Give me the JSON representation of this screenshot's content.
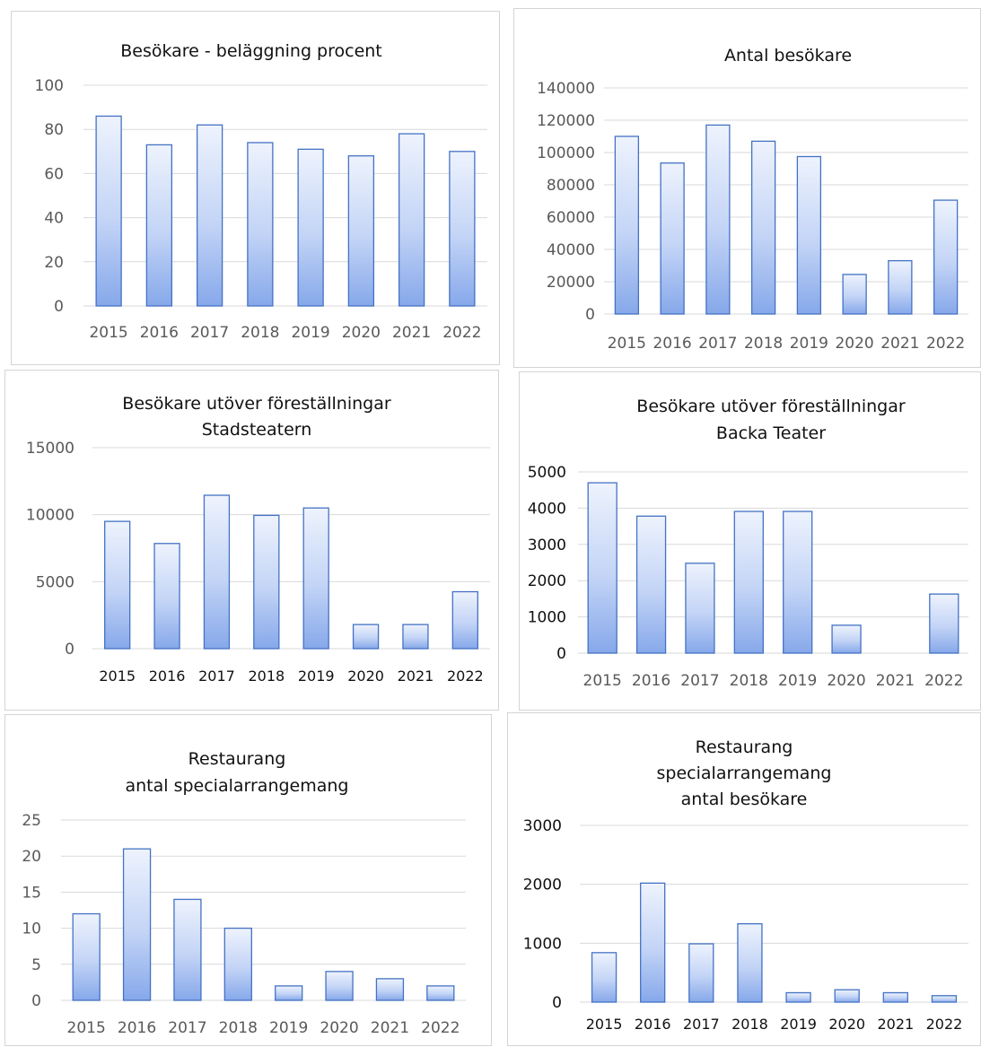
{
  "chart_data": [
    {
      "type": "bar",
      "title": [
        "Besökare - beläggning procent"
      ],
      "categories": [
        "2015",
        "2016",
        "2017",
        "2018",
        "2019",
        "2020",
        "2021",
        "2022"
      ],
      "values": [
        86,
        73,
        82,
        74,
        71,
        68,
        78,
        70
      ],
      "ylim": [
        0,
        100
      ],
      "yticks": [
        "0",
        "20",
        "40",
        "60",
        "80",
        "100"
      ],
      "grid": true,
      "bar_color": "#4472c4"
    },
    {
      "type": "bar",
      "title": [
        "Antal besökare"
      ],
      "categories": [
        "2015",
        "2016",
        "2017",
        "2018",
        "2019",
        "2020",
        "2021",
        "2022"
      ],
      "values": [
        110000,
        93500,
        117000,
        107000,
        97500,
        24500,
        33000,
        70500
      ],
      "ylim": [
        0,
        140000
      ],
      "yticks": [
        "0",
        "20000",
        "40000",
        "60000",
        "80000",
        "100000",
        "120000",
        "140000"
      ],
      "grid": true,
      "bar_color": "#4472c4"
    },
    {
      "type": "bar",
      "title": [
        "Besökare utöver föreställningar",
        "Stadsteatern"
      ],
      "categories": [
        "2015",
        "2016",
        "2017",
        "2018",
        "2019",
        "2020",
        "2021",
        "2022"
      ],
      "values": [
        9500,
        7850,
        11450,
        9950,
        10500,
        1800,
        1800,
        4250
      ],
      "ylim": [
        0,
        15000
      ],
      "yticks": [
        "0",
        "5000",
        "10000",
        "15000"
      ],
      "grid": true,
      "bar_color": "#4472c4"
    },
    {
      "type": "bar",
      "title": [
        "Besökare utöver föreställningar",
        "Backa Teater"
      ],
      "categories": [
        "2015",
        "2016",
        "2017",
        "2018",
        "2019",
        "2020",
        "2021",
        "2022"
      ],
      "values": [
        4700,
        3780,
        2480,
        3910,
        3910,
        770,
        0,
        1630
      ],
      "ylim": [
        0,
        5000
      ],
      "yticks": [
        "0",
        "1000",
        "2000",
        "3000",
        "4000",
        "5000"
      ],
      "grid": true,
      "bar_color": "#4472c4"
    },
    {
      "type": "bar",
      "title": [
        "Restaurang",
        "antal specialarrangemang"
      ],
      "categories": [
        "2015",
        "2016",
        "2017",
        "2018",
        "2019",
        "2020",
        "2021",
        "2022"
      ],
      "values": [
        12,
        21,
        14,
        10,
        2,
        4,
        3,
        2
      ],
      "ylim": [
        0,
        25
      ],
      "yticks": [
        "0",
        "5",
        "10",
        "15",
        "20",
        "25"
      ],
      "grid": true,
      "bar_color": "#4472c4"
    },
    {
      "type": "bar",
      "title": [
        "Restaurang",
        "specialarrangemang",
        "antal besökare"
      ],
      "categories": [
        "2015",
        "2016",
        "2017",
        "2018",
        "2019",
        "2020",
        "2021",
        "2022"
      ],
      "values": [
        840,
        2020,
        990,
        1330,
        160,
        210,
        160,
        110
      ],
      "ylim": [
        0,
        3000
      ],
      "yticks": [
        "0",
        "1000",
        "2000",
        "3000"
      ],
      "grid": true,
      "bar_color": "#4472c4"
    }
  ]
}
